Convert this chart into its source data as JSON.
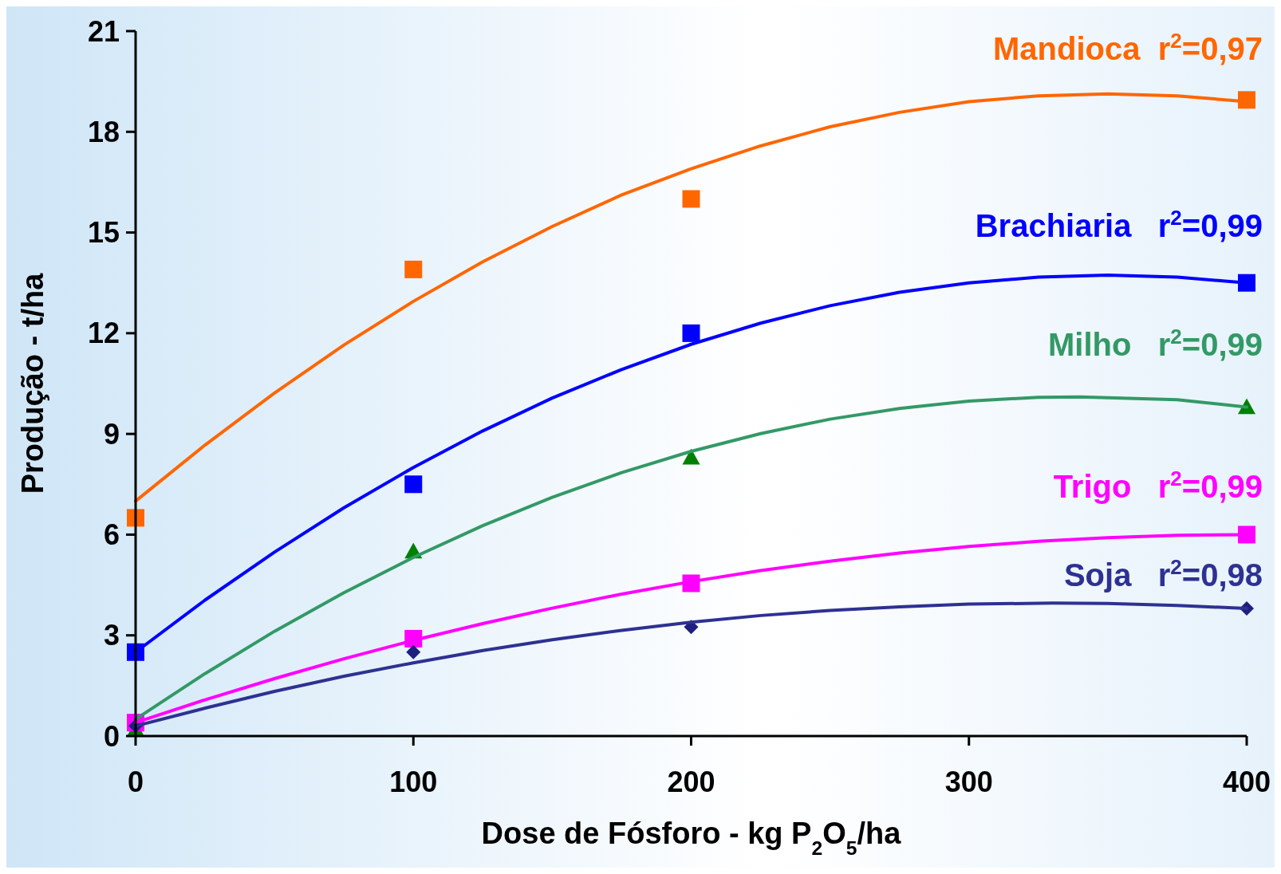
{
  "chart_data": {
    "type": "scatter",
    "xlabel": "Dose de Fósforo - kg P$_{2}$O$_{5}$/ha",
    "ylabel": "Produção - t/ha",
    "xlim": [
      0,
      400
    ],
    "xticks": [
      0,
      100,
      200,
      300,
      400
    ],
    "ylim": [
      0,
      21
    ],
    "yticks": [
      0,
      3,
      6,
      9,
      12,
      15,
      18,
      21
    ],
    "grid": false,
    "legend": false,
    "series": [
      {
        "type": "line",
        "name": "Mandioca  r$^{2}$=0,97",
        "color": "#ff6600",
        "marker": "none",
        "x": [
          0,
          25,
          50,
          75,
          100,
          125,
          150,
          175,
          200,
          225,
          250,
          275,
          300,
          325,
          350,
          375,
          400
        ],
        "values": [
          7.0,
          8.67,
          10.22,
          11.65,
          12.95,
          14.13,
          15.18,
          16.12,
          16.9,
          17.58,
          18.15,
          18.58,
          18.9,
          19.07,
          19.13,
          19.07,
          18.9
        ]
      },
      {
        "color": "#ff6600",
        "marker": "square",
        "x": [
          0,
          100,
          200,
          400
        ],
        "values": [
          6.5,
          13.9,
          16.0,
          18.95
        ]
      },
      {
        "type": "line",
        "name": "Brachiaria   r$^{2}$=0,99",
        "color": "#0000ff",
        "marker": "none",
        "x": [
          0,
          25,
          50,
          75,
          100,
          125,
          150,
          175,
          200,
          225,
          250,
          275,
          300,
          325,
          350,
          375,
          400
        ],
        "values": [
          2.5,
          4.05,
          5.48,
          6.8,
          8.0,
          9.09,
          10.07,
          10.92,
          11.67,
          12.3,
          12.82,
          13.22,
          13.5,
          13.67,
          13.73,
          13.67,
          13.5
        ]
      },
      {
        "color": "#0000ff",
        "marker": "square",
        "x": [
          0,
          100,
          200,
          400
        ],
        "values": [
          2.5,
          7.5,
          12.0,
          13.5
        ]
      },
      {
        "type": "line",
        "name": "Milho   r$^{2}$=0,99",
        "color": "#339966",
        "marker": "none",
        "x": [
          0,
          25,
          50,
          75,
          100,
          125,
          150,
          175,
          200,
          225,
          250,
          275,
          300,
          325,
          340,
          375,
          400
        ],
        "values": [
          0.5,
          1.86,
          3.12,
          4.27,
          5.32,
          6.27,
          7.11,
          7.85,
          8.48,
          9.01,
          9.44,
          9.76,
          9.98,
          10.09,
          10.1,
          10.02,
          9.8
        ]
      },
      {
        "color": "#008000",
        "marker": "triangle",
        "x": [
          0,
          100,
          200,
          400
        ],
        "values": [
          0.2,
          5.5,
          8.3,
          9.8
        ]
      },
      {
        "type": "line",
        "name": "Trigo   r$^{2}$=0,99",
        "color": "#ff00ff",
        "marker": "none",
        "x": [
          0,
          25,
          50,
          75,
          100,
          125,
          150,
          175,
          200,
          225,
          250,
          275,
          300,
          325,
          350,
          375,
          400
        ],
        "values": [
          0.4,
          1.08,
          1.71,
          2.3,
          2.85,
          3.35,
          3.81,
          4.23,
          4.6,
          4.93,
          5.21,
          5.45,
          5.65,
          5.8,
          5.91,
          5.98,
          6.0
        ]
      },
      {
        "color": "#ff00ff",
        "marker": "square",
        "x": [
          0,
          100,
          200,
          400
        ],
        "values": [
          0.4,
          2.9,
          4.55,
          6.0
        ]
      },
      {
        "type": "line",
        "name": "Soja   r$^{2}$=0,98",
        "color": "#2e3192",
        "marker": "none",
        "x": [
          0,
          25,
          50,
          75,
          100,
          125,
          150,
          175,
          200,
          225,
          250,
          275,
          300,
          330,
          350,
          375,
          400
        ],
        "values": [
          0.3,
          0.83,
          1.33,
          1.78,
          2.18,
          2.55,
          2.87,
          3.15,
          3.39,
          3.59,
          3.74,
          3.85,
          3.93,
          3.96,
          3.95,
          3.89,
          3.8
        ]
      },
      {
        "color": "#1f1f80",
        "marker": "diamond",
        "x": [
          0,
          100,
          200,
          400
        ],
        "values": [
          0.3,
          2.5,
          3.25,
          3.8
        ]
      }
    ]
  }
}
